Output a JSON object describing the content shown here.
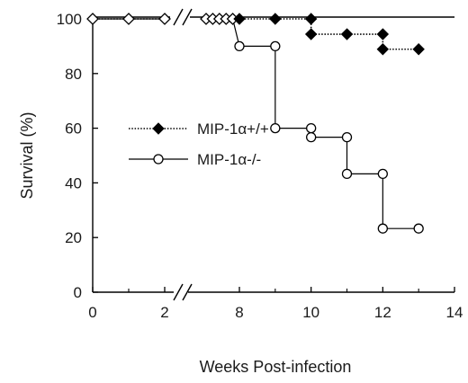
{
  "chart_data": {
    "type": "line",
    "title": "",
    "xlabel": "Weeks Post-infection",
    "ylabel": "Survival (%)",
    "ylim": [
      0,
      100
    ],
    "y_ticks": [
      0,
      20,
      40,
      60,
      80,
      100
    ],
    "x_ticks": [
      0,
      2,
      8,
      10,
      12,
      14
    ],
    "x_axis_break": "between 2 and 8 weeks",
    "grid": false,
    "legend_position": "middle-left",
    "series": [
      {
        "name": "MIP-1α+/+",
        "style": "dotted step line",
        "marker": "filled diamond",
        "color": "#000000",
        "x": [
          0,
          1,
          2,
          3,
          4,
          5,
          6,
          7,
          8,
          9,
          10,
          10,
          11,
          12,
          12,
          13
        ],
        "y": [
          100,
          100,
          100,
          100,
          100,
          100,
          100,
          100,
          100,
          100,
          100,
          94.4,
          94.4,
          94.4,
          88.9,
          88.9
        ]
      },
      {
        "name": "MIP-1α-/-",
        "style": "solid step line",
        "marker": "open circle",
        "color": "#000000",
        "x": [
          0,
          1,
          2,
          3,
          4,
          5,
          6,
          7,
          8,
          9,
          9,
          10,
          10,
          11,
          11,
          12,
          12,
          13
        ],
        "y": [
          100,
          100,
          100,
          100,
          100,
          100,
          100,
          100,
          90,
          90,
          60,
          60,
          56.7,
          56.7,
          43.3,
          43.3,
          23.3,
          23.3
        ]
      }
    ]
  }
}
